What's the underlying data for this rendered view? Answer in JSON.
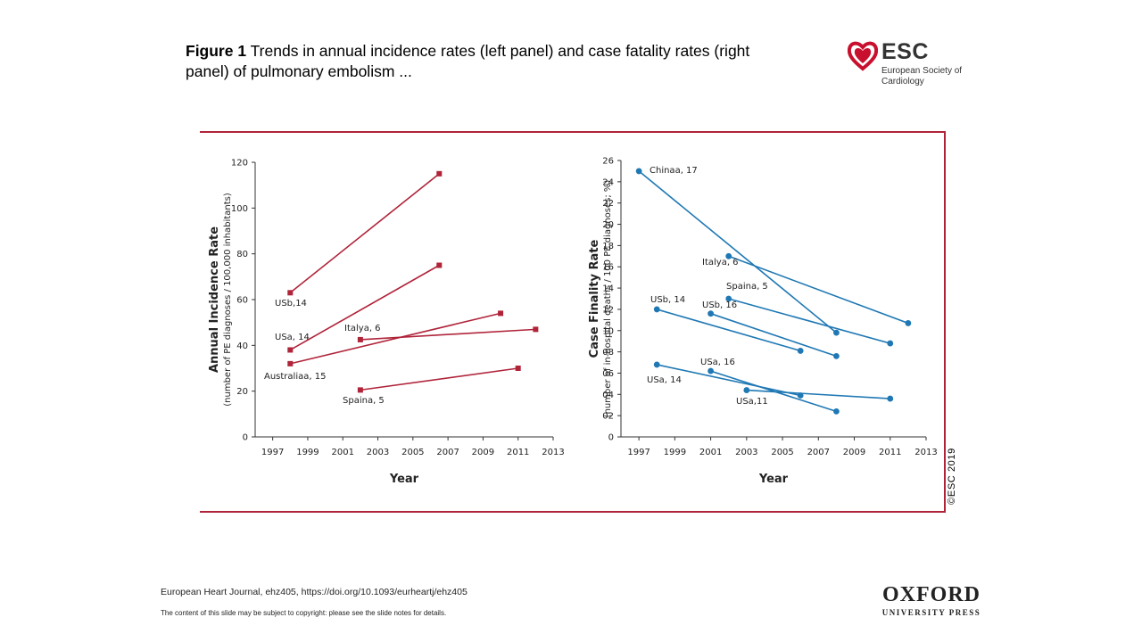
{
  "header": {
    "title_bold": "Figure 1",
    "title_rest": " Trends in annual incidence rates (left panel) and case fatality rates (right panel) of pulmonary embolism ..."
  },
  "esc_logo": {
    "abbr": "ESC",
    "full": "European Society of Cardiology",
    "color": "#c8102e"
  },
  "copyright": "©ESC 2019",
  "footer": {
    "citation": "European Heart Journal, ehz405, https://doi.org/10.1093/eurheartj/ehz405",
    "note": "The content of this slide may be subject to copyright: please see the slide notes for details.",
    "publisher_line1": "OXFORD",
    "publisher_line2": "UNIVERSITY PRESS"
  },
  "chart_data": [
    {
      "type": "line",
      "title": "",
      "ylabel": "Annual Incidence Rate",
      "ylabel_sub": "(number of PE diagnoses / 100,000 inhabitants)",
      "xlabel": "Year",
      "xlim": [
        1996,
        2013
      ],
      "ylim": [
        0,
        120
      ],
      "xticks": [
        "1997",
        "1999",
        "2001",
        "2003",
        "2005",
        "2007",
        "2009",
        "2011",
        "2013"
      ],
      "yticks": [
        "0",
        "20",
        "40",
        "60",
        "80",
        "100",
        "120"
      ],
      "color": "#b0243a",
      "marker": "square",
      "series": [
        {
          "name": "USb,14",
          "x": [
            1998,
            2006.5
          ],
          "y": [
            63,
            115
          ]
        },
        {
          "name": "USa, 14",
          "x": [
            1998,
            2006.5
          ],
          "y": [
            38,
            75
          ]
        },
        {
          "name": "Australiaa, 15",
          "x": [
            1998,
            2010
          ],
          "y": [
            32,
            54
          ]
        },
        {
          "name": "Italya, 6",
          "x": [
            2002,
            2012
          ],
          "y": [
            42.5,
            47
          ]
        },
        {
          "name": "Spaina, 5",
          "x": [
            2002,
            2011
          ],
          "y": [
            20.5,
            30
          ]
        }
      ]
    },
    {
      "type": "line",
      "title": "",
      "ylabel": "Case Finality Rate",
      "ylabel_sub": "(number of in-hospital deaths / 100 PE diagnoses; %)",
      "xlabel": "Year",
      "xlim": [
        1996,
        2013
      ],
      "ylim": [
        0,
        26
      ],
      "xticks": [
        "1997",
        "1999",
        "2001",
        "2003",
        "2005",
        "2007",
        "2009",
        "2011",
        "2013"
      ],
      "yticks": [
        "0",
        "02",
        "04",
        "06",
        "08",
        "10",
        "12",
        "14",
        "16",
        "18",
        "20",
        "22",
        "24",
        "26"
      ],
      "color": "#1f78b4",
      "marker": "circle",
      "series": [
        {
          "name": "Chinaa, 17",
          "x": [
            1997,
            2008
          ],
          "y": [
            25,
            9.8
          ]
        },
        {
          "name": "Italya, 6",
          "x": [
            2002,
            2012
          ],
          "y": [
            17,
            10.7
          ]
        },
        {
          "name": "Spaina, 5",
          "x": [
            2002,
            2011
          ],
          "y": [
            13,
            8.8
          ]
        },
        {
          "name": "USb, 14",
          "x": [
            1998,
            2006
          ],
          "y": [
            12,
            8.1
          ]
        },
        {
          "name": "USb, 16",
          "x": [
            2001,
            2008
          ],
          "y": [
            11.6,
            7.6
          ]
        },
        {
          "name": "USa, 16",
          "x": [
            2001,
            2008
          ],
          "y": [
            6.2,
            2.4
          ]
        },
        {
          "name": "USa, 14",
          "x": [
            1998,
            2006
          ],
          "y": [
            6.8,
            3.9
          ]
        },
        {
          "name": "USa,11",
          "x": [
            2003,
            2011
          ],
          "y": [
            4.4,
            3.6
          ]
        }
      ]
    }
  ]
}
